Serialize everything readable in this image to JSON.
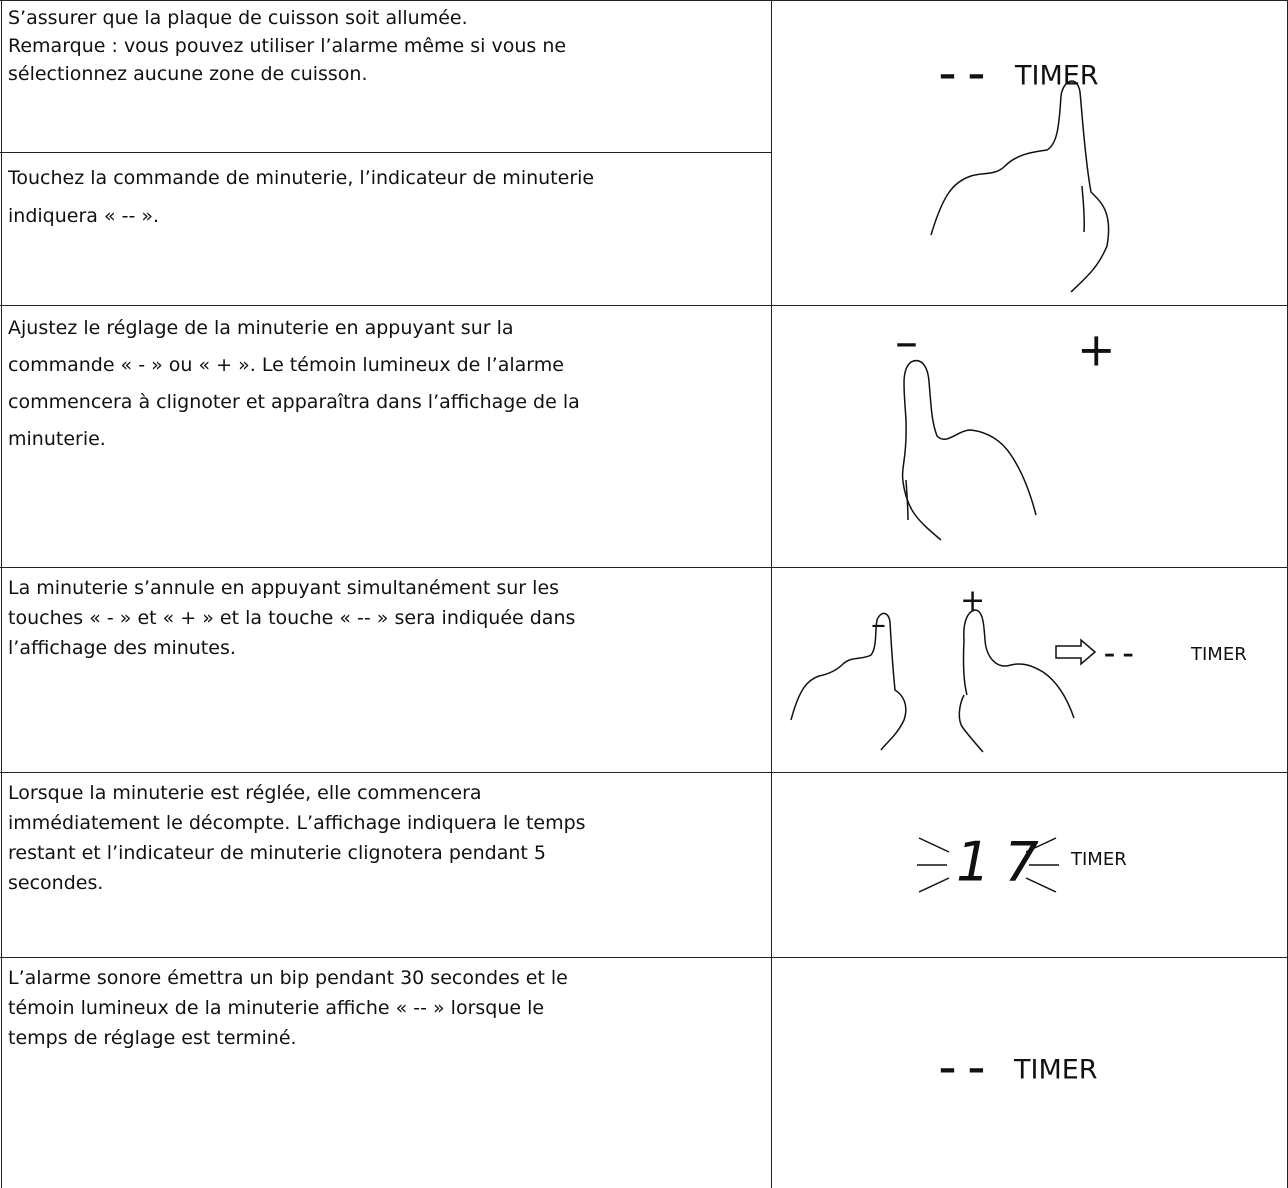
{
  "table": {
    "rows": [
      {
        "lines": [
          "S’assurer que la plaque de cuisson soit allumée.",
          "Remarque : vous pouvez utiliser l’alarme même si vous ne",
          "sélectionnez aucune zone de cuisson."
        ]
      },
      {
        "lines": [
          "Touchez la commande de minuterie, l’indicateur de minuterie",
          "indiquera « -- »."
        ]
      },
      {
        "lines": [
          "Ajustez le réglage de la minuterie en appuyant sur la",
          "commande « - » ou « + ». Le témoin lumineux de l’alarme",
          "commencera à clignoter et apparaîtra dans l’affichage de la",
          "minuterie."
        ]
      },
      {
        "lines": [
          "La minuterie s’annule en appuyant simultanément sur les",
          "touches « - » et « + » et la touche « -- » sera indiquée dans",
          "l’affichage des minutes."
        ]
      },
      {
        "lines": [
          "Lorsque la minuterie est réglée, elle commencera",
          "immédiatement le décompte. L’affichage indiquera le temps",
          "restant et l’indicateur de minuterie clignotera pendant 5",
          "secondes."
        ]
      },
      {
        "lines": [
          "L’alarme sonore émettra un bip pendant 30 secondes et le",
          "témoin lumineux de la minuterie affiche « -- » lorsque le",
          "temps de réglage est terminé."
        ]
      }
    ]
  },
  "illustrations": [
    {
      "dashes": "– –",
      "label": "TIMER"
    },
    {
      "minus": "–",
      "plus": "+"
    },
    {
      "minus": "–",
      "plus": "+",
      "dashes": "– –",
      "label": "TIMER"
    },
    {
      "digits": "17",
      "label": "TIMER"
    },
    {
      "dashes": "– –",
      "label": "TIMER"
    }
  ]
}
